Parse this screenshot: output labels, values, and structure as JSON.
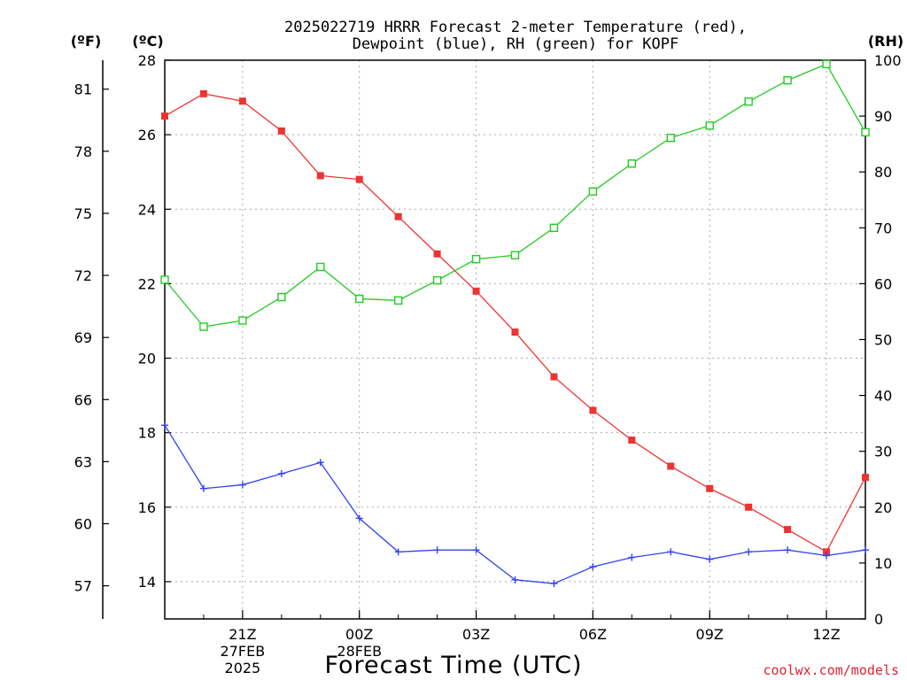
{
  "chart_data": {
    "type": "line",
    "title": "2025022719 HRRR Forecast 2-meter Temperature (red),",
    "subtitle": "Dewpoint (blue), RH (green) for KOPF",
    "xlabel": "Forecast Time (UTC)",
    "credit": "coolwx.com/models",
    "left_axis_f": {
      "label": "(ºF)",
      "ticks": [
        57,
        60,
        63,
        66,
        69,
        72,
        75,
        78,
        81
      ]
    },
    "left_axis_c": {
      "label": "(ºC)",
      "ticks": [
        14,
        16,
        18,
        20,
        22,
        24,
        26,
        28
      ],
      "range": [
        13,
        28
      ]
    },
    "right_axis": {
      "label": "(RH)",
      "ticks": [
        0,
        10,
        20,
        30,
        40,
        50,
        60,
        70,
        80,
        90,
        100
      ],
      "range": [
        0,
        100
      ]
    },
    "x_ticks": [
      {
        "hour": 21,
        "label": "21Z",
        "date": "27FEB",
        "year": "2025"
      },
      {
        "hour": 24,
        "label": "00Z",
        "date": "28FEB"
      },
      {
        "hour": 27,
        "label": "03Z"
      },
      {
        "hour": 30,
        "label": "06Z"
      },
      {
        "hour": 33,
        "label": "09Z"
      },
      {
        "hour": 36,
        "label": "12Z"
      }
    ],
    "x": [
      19,
      20,
      21,
      22,
      23,
      24,
      25,
      26,
      27,
      28,
      29,
      30,
      31,
      32,
      33,
      34,
      35,
      36,
      37
    ],
    "x_range": [
      19,
      37
    ],
    "grid": true,
    "series": [
      {
        "name": "Temperature",
        "axis": "C",
        "color": "#ee3333",
        "marker": "filled-square",
        "values": [
          26.5,
          27.1,
          26.9,
          26.1,
          24.9,
          24.8,
          23.8,
          22.8,
          21.8,
          20.7,
          19.5,
          18.6,
          17.8,
          17.1,
          16.5,
          16.0,
          15.4,
          14.8,
          16.8
        ]
      },
      {
        "name": "Dewpoint",
        "axis": "C",
        "color": "#3344ee",
        "marker": "plus",
        "values": [
          18.2,
          16.5,
          16.6,
          16.9,
          17.2,
          15.7,
          14.8,
          14.85,
          14.85,
          14.05,
          13.95,
          14.4,
          14.65,
          14.8,
          14.6,
          14.8,
          14.85,
          14.7,
          14.85
        ]
      },
      {
        "name": "RH",
        "axis": "RH",
        "color": "#22cc22",
        "marker": "open-square",
        "values": [
          60.7,
          52.3,
          53.4,
          57.6,
          63.0,
          57.3,
          57.0,
          60.6,
          64.4,
          65.1,
          70.0,
          76.5,
          81.5,
          86.1,
          88.3,
          92.6,
          96.4,
          99.3,
          87.1
        ]
      }
    ]
  }
}
